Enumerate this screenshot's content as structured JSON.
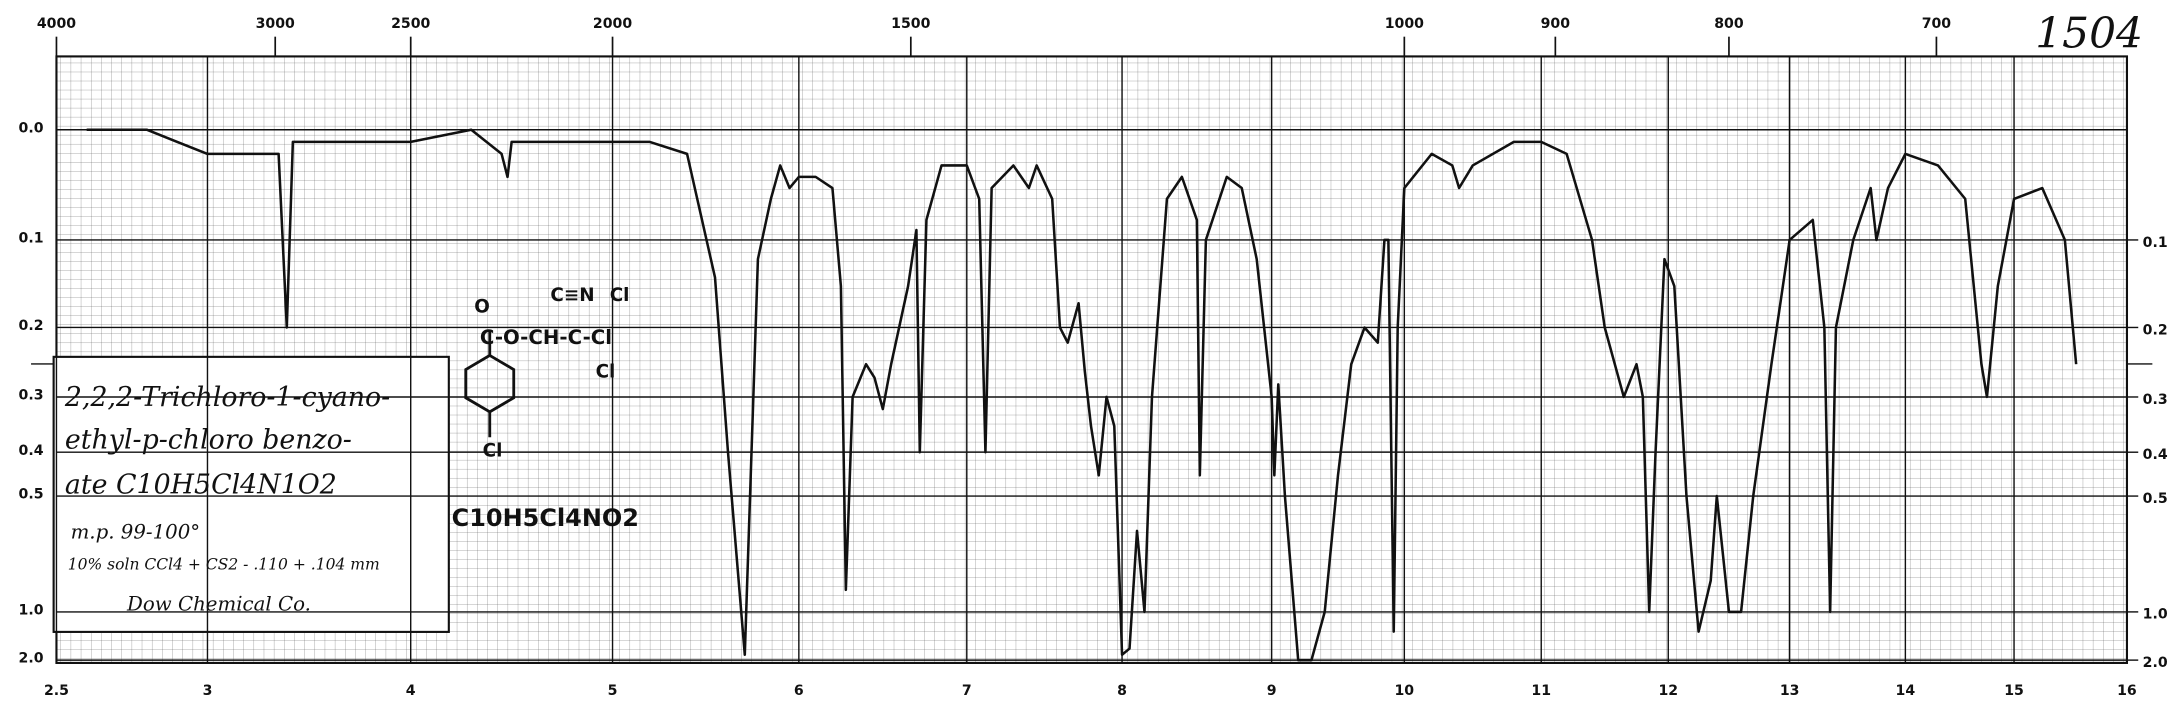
{
  "chart_data": {
    "type": "line",
    "yscale": "absorbance",
    "color": "#111111",
    "grid": true,
    "sheet_number": "1504",
    "annotations": [
      "2,2,2-Trichloro-1-cyano-",
      "ethyl-p-chloro benzo-",
      "ate  C10H5Cl4N1O2",
      "m.p. 99-100°",
      "10% soln CCl4 + CS2 - .110 + .104 mm",
      "Dow Chemical Co."
    ],
    "formula": "C10H5Cl4NO2",
    "structure": [
      "O",
      "C-O-CH-C-Cl",
      "C≡N",
      "Cl",
      "Cl",
      "Cl"
    ],
    "xlim": [
      2.5,
      16
    ],
    "xticks": [
      2.5,
      3,
      4,
      5,
      6,
      7,
      8,
      9,
      10,
      11,
      12,
      13,
      14,
      15,
      16
    ],
    "x2ticks": [
      4000,
      3000,
      2500,
      2000,
      1500,
      1000,
      900,
      800,
      700
    ],
    "ylim": [
      0,
      2
    ],
    "yticks": [
      {
        "value": 0,
        "label": "0.0"
      },
      0.1,
      0.2,
      0.3,
      0.4,
      0.5,
      {
        "value": 1,
        "label": "1.0"
      },
      {
        "value": 2,
        "label": "2.0"
      }
    ],
    "y2lim": [
      0,
      2
    ],
    "y2ticks": [
      0.1,
      0.2,
      0.3,
      0.4,
      0.5,
      {
        "value": 1,
        "label": "1.0"
      },
      {
        "value": 2,
        "label": "2.0"
      }
    ],
    "x": [
      2.6,
      2.8,
      2.9,
      3.0,
      3.2,
      3.35,
      3.39,
      3.42,
      3.6,
      3.8,
      4.0,
      4.3,
      4.45,
      4.48,
      4.5,
      4.8,
      5.0,
      5.2,
      5.4,
      5.55,
      5.62,
      5.71,
      5.78,
      5.85,
      5.9,
      5.95,
      6.0,
      6.1,
      6.2,
      6.25,
      6.28,
      6.32,
      6.4,
      6.45,
      6.5,
      6.55,
      6.65,
      6.7,
      6.72,
      6.76,
      6.85,
      7.0,
      7.08,
      7.12,
      7.16,
      7.3,
      7.4,
      7.45,
      7.55,
      7.6,
      7.65,
      7.72,
      7.76,
      7.8,
      7.85,
      7.9,
      7.95,
      8.0,
      8.05,
      8.1,
      8.15,
      8.2,
      8.3,
      8.4,
      8.5,
      8.52,
      8.56,
      8.7,
      8.8,
      8.9,
      9.0,
      9.02,
      9.05,
      9.1,
      9.2,
      9.3,
      9.4,
      9.5,
      9.6,
      9.7,
      9.8,
      9.85,
      9.88,
      9.92,
      9.95,
      10.0,
      10.2,
      10.35,
      10.4,
      10.5,
      10.8,
      11.0,
      11.2,
      11.4,
      11.5,
      11.65,
      11.75,
      11.8,
      11.85,
      11.9,
      11.97,
      12.05,
      12.15,
      12.25,
      12.35,
      12.4,
      12.5,
      12.6,
      12.7,
      12.85,
      13.0,
      13.2,
      13.3,
      13.35,
      13.4,
      13.55,
      13.7,
      13.75,
      13.85,
      14.0,
      14.3,
      14.55,
      14.7,
      14.75,
      14.85,
      15.0,
      15.25,
      15.45,
      15.55
    ],
    "values": [
      0.0,
      0.0,
      0.01,
      0.02,
      0.02,
      0.02,
      0.2,
      0.01,
      0.01,
      0.01,
      0.01,
      0.0,
      0.02,
      0.04,
      0.01,
      0.01,
      0.01,
      0.01,
      0.02,
      0.14,
      0.4,
      1.7,
      0.12,
      0.06,
      0.03,
      0.05,
      0.04,
      0.04,
      0.05,
      0.15,
      0.85,
      0.3,
      0.25,
      0.27,
      0.32,
      0.25,
      0.15,
      0.09,
      0.4,
      0.08,
      0.03,
      0.03,
      0.06,
      0.4,
      0.05,
      0.03,
      0.05,
      0.03,
      0.06,
      0.2,
      0.22,
      0.17,
      0.26,
      0.35,
      0.45,
      0.3,
      0.35,
      1.7,
      1.5,
      0.6,
      1.0,
      0.3,
      0.06,
      0.04,
      0.08,
      0.45,
      0.1,
      0.04,
      0.05,
      0.12,
      0.3,
      0.45,
      0.28,
      0.5,
      2.0,
      2.0,
      1.0,
      0.45,
      0.25,
      0.2,
      0.22,
      0.1,
      0.1,
      1.2,
      0.2,
      0.05,
      0.02,
      0.03,
      0.05,
      0.03,
      0.01,
      0.01,
      0.02,
      0.1,
      0.2,
      0.3,
      0.25,
      0.3,
      1.0,
      0.4,
      0.12,
      0.15,
      0.5,
      1.2,
      0.8,
      0.5,
      1.0,
      1.0,
      0.5,
      0.25,
      0.1,
      0.08,
      0.2,
      1.0,
      0.2,
      0.1,
      0.05,
      0.1,
      0.05,
      0.02,
      0.03,
      0.06,
      0.25,
      0.3,
      0.15,
      0.06,
      0.05,
      0.1,
      0.25
    ]
  }
}
